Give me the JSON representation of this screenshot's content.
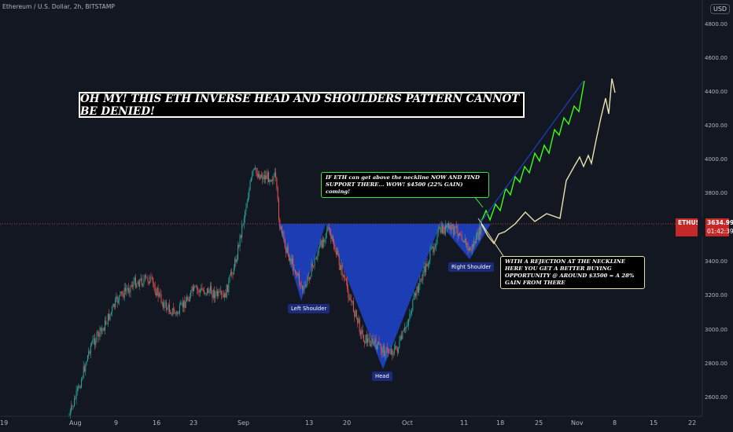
{
  "header": {
    "symbol": "Ethereum / U.S. Dollar, 2h, BITSTAMP",
    "currency": "USD"
  },
  "price_tag": {
    "ticker": "ETHUSD",
    "price": "3634.99",
    "countdown": "01:42:39",
    "color": "#c62828"
  },
  "title": "OH MY! THIS ETH INVERSE HEAD AND SHOULDERS PATTERN CANNOT BE DENIED!",
  "notes": {
    "green": "IF ETH can get above the neckline NOW AND FIND SUPPORT THERE... WOW! $4500 (22% GAIN) coming!",
    "yellow": "WITH A REJECTION AT THE NECKLINE HERE YOU GET A BETTER BUYING OPPORTUNITY @ AROUND $3500 = A 28% GAIN FROM THERE"
  },
  "pattern_labels": {
    "left": "Left Shoulder",
    "head": "Head",
    "right": "Right Shoulder"
  },
  "y_axis": [
    "4800.00",
    "4600.00",
    "4400.00",
    "4200.00",
    "4000.00",
    "3800.00",
    "3400.00",
    "3200.00",
    "3000.00",
    "2800.00",
    "2600.00"
  ],
  "x_axis": [
    "19",
    "Aug",
    "9",
    "16",
    "23",
    "Sep",
    "13",
    "20",
    "Oct",
    "11",
    "18",
    "25",
    "Nov",
    "8",
    "15",
    "22"
  ],
  "colors": {
    "up": "#26a69a",
    "down": "#ef5350",
    "pattern_fill": "#1e3fbd",
    "bull_path": "#39ff14",
    "bear_path": "#e8e2b0",
    "background": "#131722"
  }
}
